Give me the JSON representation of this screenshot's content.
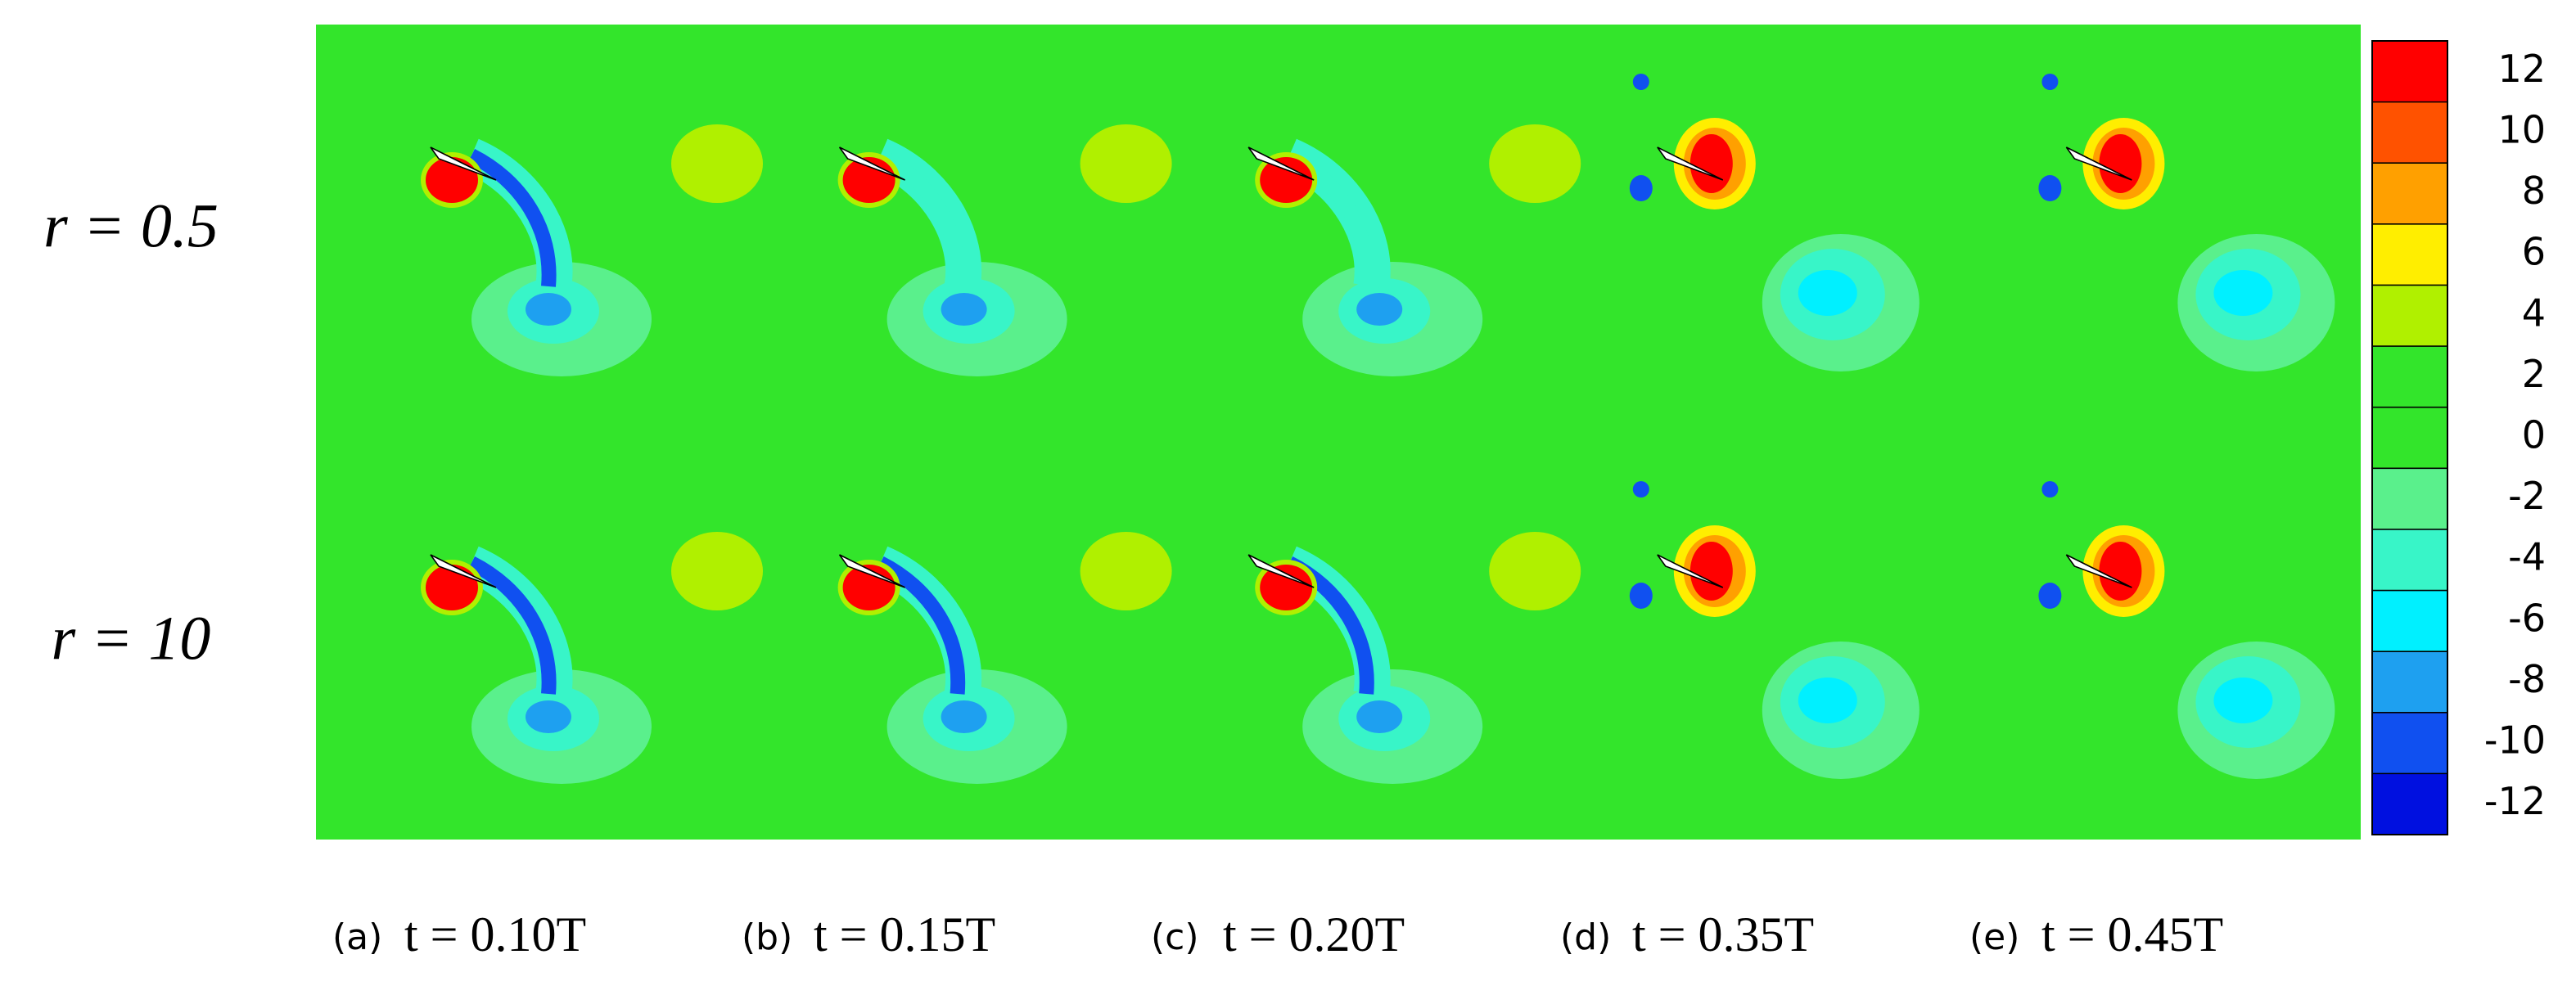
{
  "chart_data": {
    "type": "contour",
    "rows": [
      "r = 0.5",
      "r = 10"
    ],
    "panels": [
      {
        "label": "(a)",
        "time": "t = 0.10T"
      },
      {
        "label": "(b)",
        "time": "t = 0.15T"
      },
      {
        "label": "(c)",
        "time": "t = 0.20T"
      },
      {
        "label": "(d)",
        "time": "t = 0.35T"
      },
      {
        "label": "(e)",
        "time": "t = 0.45T"
      }
    ],
    "background": "#33e52b",
    "colorbar": {
      "zlim": [
        -13,
        13
      ],
      "ticks": [
        12,
        10,
        8,
        6,
        4,
        2,
        0,
        -2,
        -4,
        -6,
        -8,
        -10,
        -12
      ],
      "colors": [
        "#ff0000",
        "#ff5200",
        "#ffa000",
        "#ffee00",
        "#b0f000",
        "#33e52b",
        "#33e52b",
        "#5af08c",
        "#38f5c8",
        "#00f0ff",
        "#1ea0f0",
        "#1050f0",
        "#0010e0"
      ]
    }
  }
}
